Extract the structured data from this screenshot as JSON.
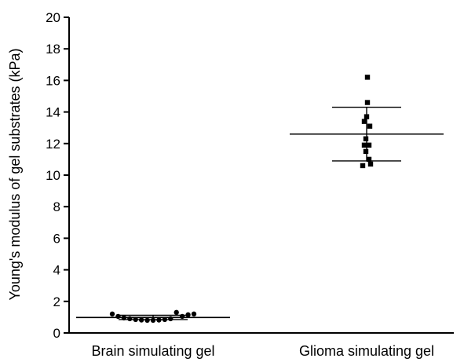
{
  "chart_data": {
    "type": "scatter",
    "title": "",
    "xlabel": "",
    "ylabel": "Young's modulus of gel substrates (kPa)",
    "ylim": [
      0,
      20
    ],
    "yticks": [
      0,
      2,
      4,
      6,
      8,
      10,
      12,
      14,
      16,
      18,
      20
    ],
    "grid": false,
    "categories": [
      "Brain simulating gel",
      "Glioma simulating gel"
    ],
    "series": [
      {
        "category": "Brain simulating gel",
        "marker": "circle",
        "values": [
          1.2,
          1.05,
          0.95,
          0.9,
          0.85,
          0.82,
          0.8,
          0.8,
          0.82,
          0.85,
          0.9,
          1.3,
          1.05,
          1.15,
          1.2
        ],
        "mean": 0.98,
        "error_low": 0.85,
        "error_high": 1.12
      },
      {
        "category": "Glioma simulating gel",
        "marker": "square",
        "values": [
          16.2,
          14.6,
          13.7,
          13.4,
          13.1,
          12.3,
          11.9,
          11.9,
          11.5,
          11.0,
          10.7,
          10.6
        ],
        "mean": 12.6,
        "error_low": 10.9,
        "error_high": 14.3
      }
    ]
  }
}
